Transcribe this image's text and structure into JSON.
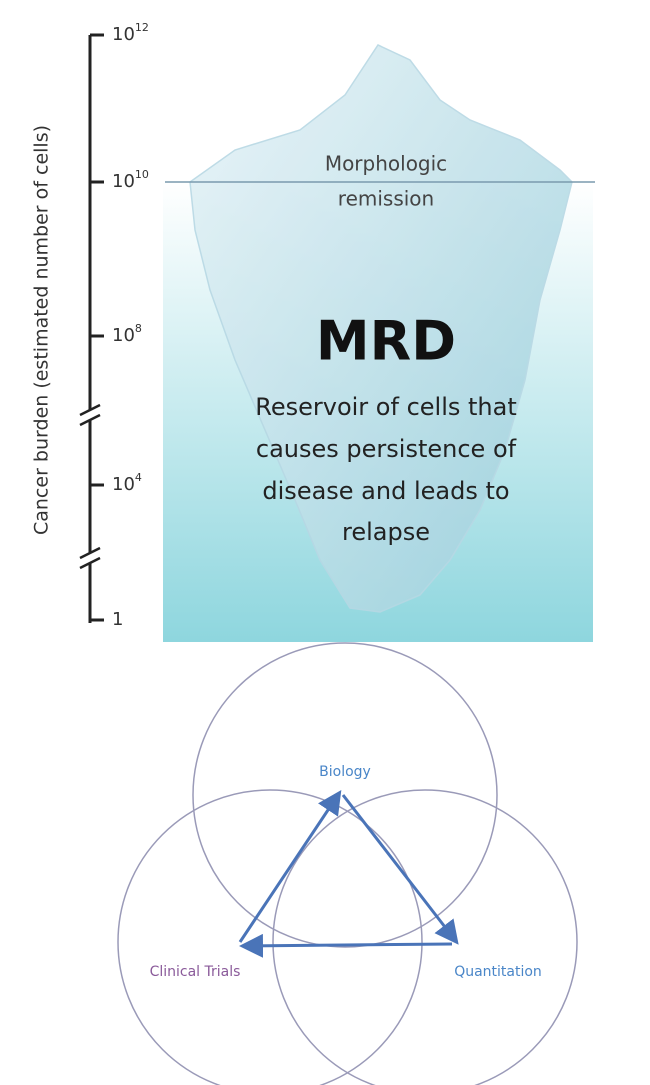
{
  "axis_label": "Cancer burden (estimated number of cells)",
  "ticks": [
    {
      "base": "10",
      "exp": "12"
    },
    {
      "base": "10",
      "exp": "10"
    },
    {
      "base": "10",
      "exp": "8"
    },
    {
      "base": "10",
      "exp": "4"
    },
    {
      "base": "1"
    }
  ],
  "iceberg": {
    "waterline": [
      "Morphologic",
      "remission"
    ],
    "title": "MRD",
    "description": [
      "Reservoir of cells that",
      "causes persistence of",
      "disease and leads to",
      "relapse"
    ]
  },
  "venn": {
    "labels": [
      "Biology",
      "Clinical Trials",
      "Quantitation"
    ]
  }
}
